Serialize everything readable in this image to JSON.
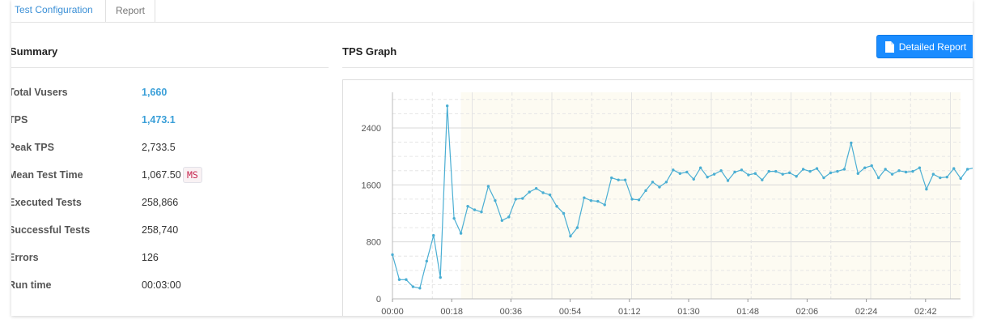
{
  "tabs": {
    "config_label": "Test Configuration",
    "report_label": "Report"
  },
  "summary": {
    "title": "Summary",
    "rows": [
      {
        "label": "Total Vusers",
        "value": "1,660"
      },
      {
        "label": "TPS",
        "value": "1,473.1"
      },
      {
        "label": "Peak TPS",
        "value": "2,733.5"
      },
      {
        "label": "Mean Test Time",
        "value": "1,067.50",
        "unit": "MS"
      },
      {
        "label": "Executed Tests",
        "value": "258,866"
      },
      {
        "label": "Successful Tests",
        "value": "258,740"
      },
      {
        "label": "Errors",
        "value": "126"
      },
      {
        "label": "Run time",
        "value": "00:03:00"
      }
    ]
  },
  "tps": {
    "title": "TPS Graph",
    "detail_button_label": "Detailed Report",
    "icon": "document-icon",
    "colors": {
      "line": "#4aaed3",
      "plot_bg": "#fdfbf2",
      "button": "#1a8cff"
    }
  },
  "chart_data": {
    "type": "line",
    "title": "",
    "xlabel": "",
    "ylabel": "",
    "ylim": [
      0,
      2900
    ],
    "y_ticks": [
      0,
      800,
      1600,
      2400
    ],
    "x_tick_labels": [
      "00:00",
      "00:18",
      "00:36",
      "00:54",
      "01:12",
      "01:30",
      "01:48",
      "02:06",
      "02:24",
      "02:42"
    ],
    "grid": true,
    "series": [
      {
        "values": [
          620,
          270,
          270,
          170,
          150,
          530,
          890,
          300,
          2710,
          1130,
          920,
          1300,
          1250,
          1220,
          1580,
          1380,
          1100,
          1150,
          1400,
          1410,
          1500,
          1550,
          1490,
          1460,
          1300,
          1200,
          880,
          1000,
          1420,
          1380,
          1370,
          1320,
          1700,
          1670,
          1670,
          1400,
          1390,
          1520,
          1640,
          1570,
          1640,
          1810,
          1760,
          1780,
          1680,
          1840,
          1710,
          1750,
          1800,
          1660,
          1780,
          1810,
          1740,
          1760,
          1670,
          1790,
          1790,
          1750,
          1770,
          1720,
          1820,
          1790,
          1830,
          1700,
          1770,
          1790,
          1820,
          2190,
          1760,
          1840,
          1870,
          1700,
          1820,
          1750,
          1800,
          1780,
          1790,
          1840,
          1540,
          1750,
          1700,
          1710,
          1830,
          1690,
          1820,
          1840
        ]
      }
    ]
  }
}
